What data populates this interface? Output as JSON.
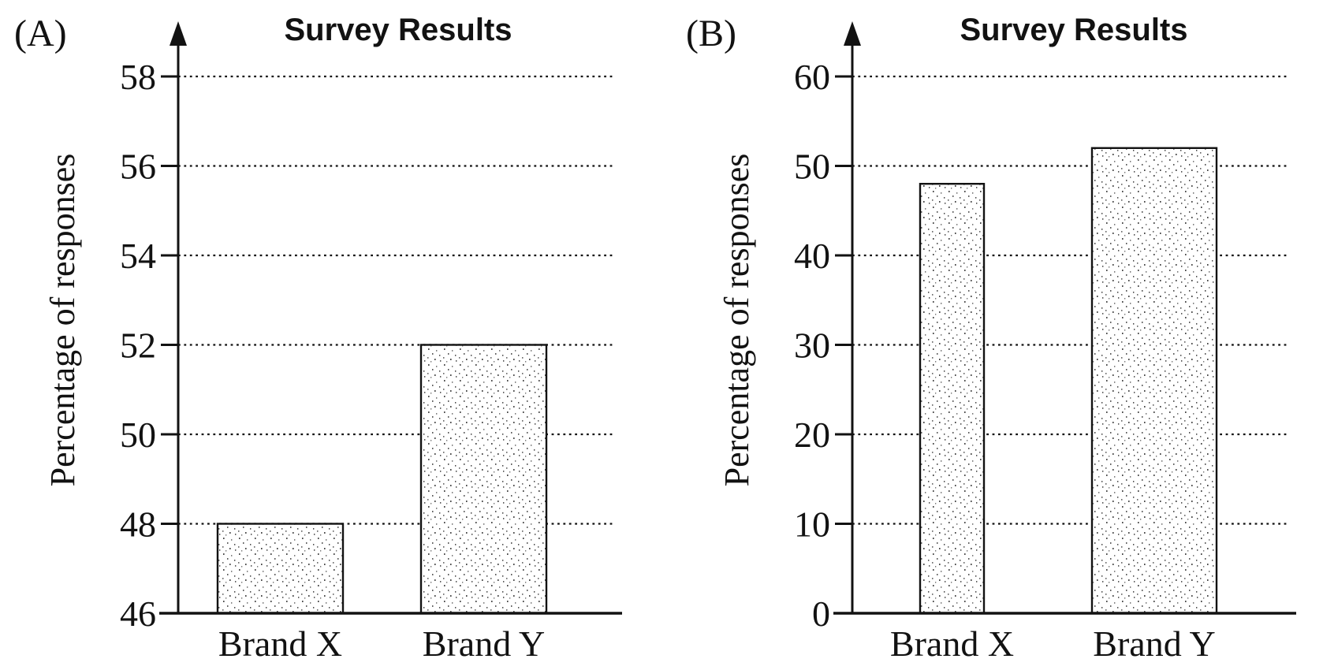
{
  "figure": {
    "description_visible_text_only": "Two bar charts comparing survey results for Brand X and Brand Y",
    "panel_count": 2
  },
  "colors": {
    "ink": "#121212",
    "paper": "#ffffff",
    "stipple_dot": "#4a4a4a",
    "stipple_dot_light": "#7a7a7a"
  },
  "chart_data": [
    {
      "type": "bar",
      "panel_label": "(A)",
      "title": "Survey Results",
      "xlabel": "",
      "ylabel": "Percentage of responses",
      "categories": [
        "Brand X",
        "Brand Y"
      ],
      "values": [
        48,
        52
      ],
      "ylim": [
        46,
        58
      ],
      "yticks": [
        46,
        48,
        50,
        52,
        54,
        56,
        58
      ],
      "grid": "dotted horizontal gridlines at each tick above axis minimum",
      "legend": "none",
      "bar_fill": "white with fine stipple dots, black outline"
    },
    {
      "type": "bar",
      "panel_label": "(B)",
      "title": "Survey Results",
      "xlabel": "",
      "ylabel": "Percentage of responses",
      "categories": [
        "Brand X",
        "Brand Y"
      ],
      "values": [
        48,
        52
      ],
      "ylim": [
        0,
        60
      ],
      "yticks": [
        0,
        10,
        20,
        30,
        40,
        50,
        60
      ],
      "grid": "dotted horizontal gridlines at each tick above axis minimum",
      "legend": "none",
      "bar_fill": "white with fine stipple dots, black outline"
    }
  ]
}
